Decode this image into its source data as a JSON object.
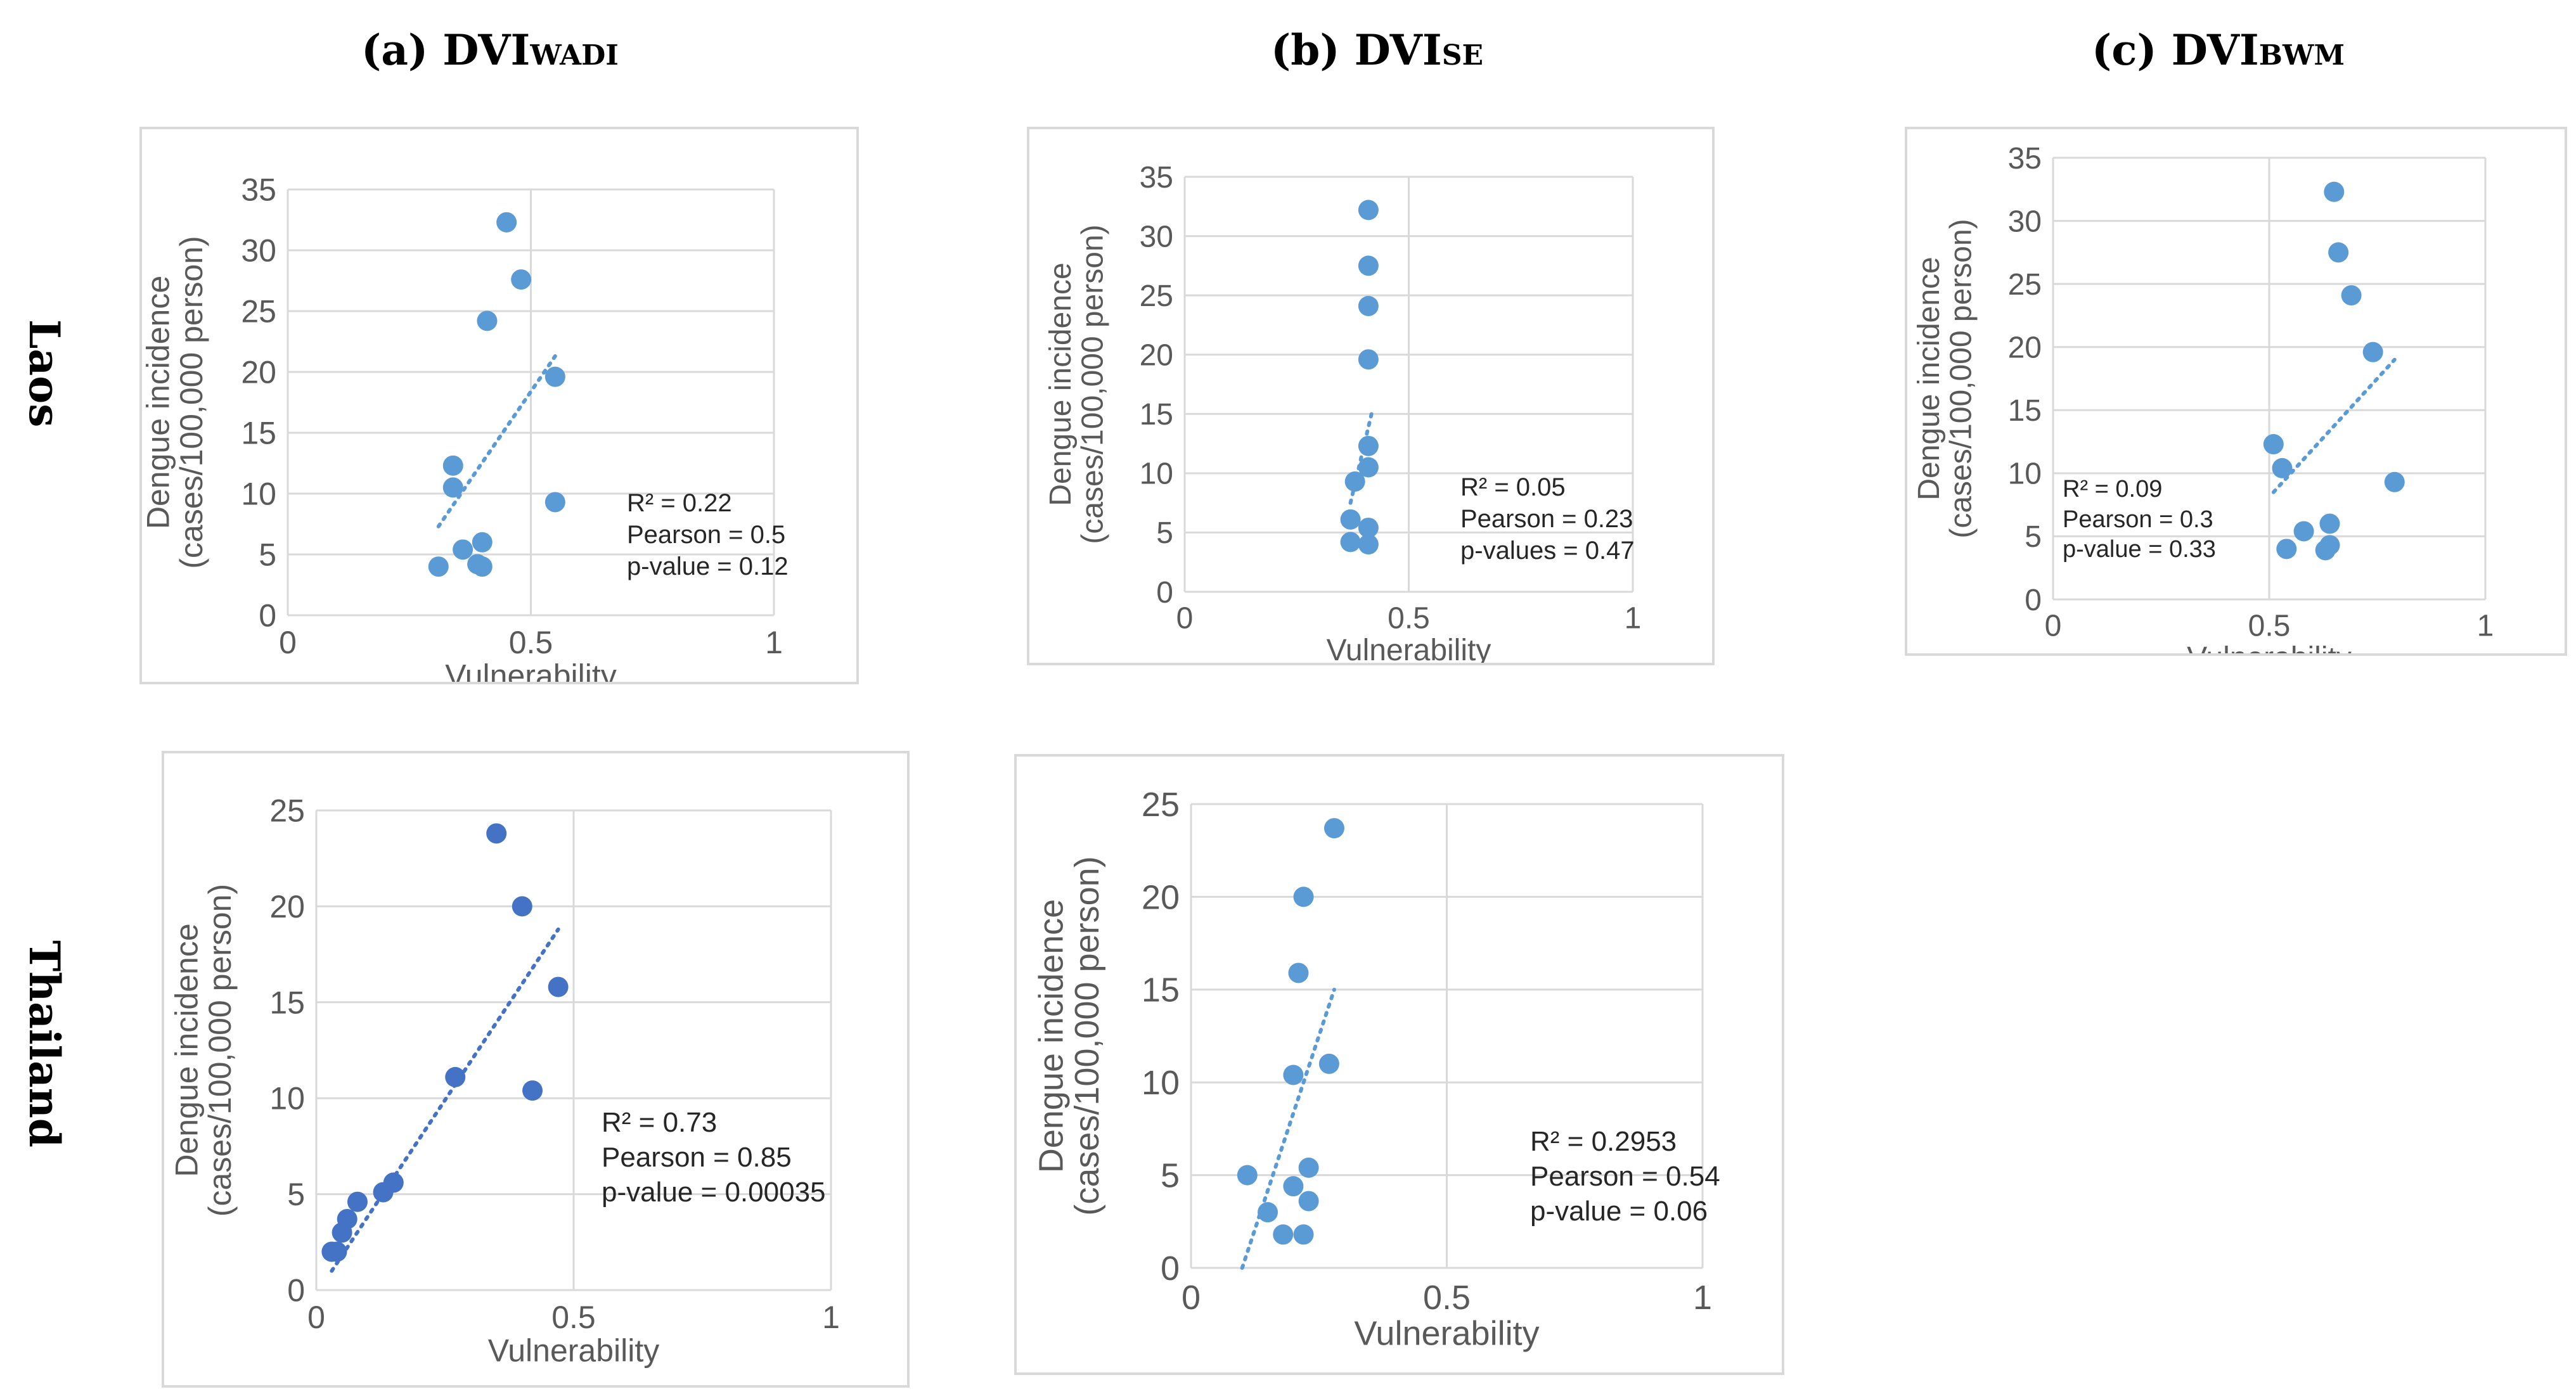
{
  "column_titles": [
    {
      "label": "a",
      "main": "DVI",
      "sub": "WADI"
    },
    {
      "label": "b",
      "main": "DVI",
      "sub": "SE"
    },
    {
      "label": "c",
      "main": "DVI",
      "sub": "BWM"
    }
  ],
  "row_titles": [
    "Laos",
    "Thailand"
  ],
  "chart_data": [
    {
      "id": "laos-wadi",
      "type": "scatter",
      "xlabel": "Vulnerability",
      "ylabel_line1": "Dengue incidence",
      "ylabel_line2": "(cases/100,000 person)",
      "xlim": [
        0,
        1
      ],
      "ylim": [
        0,
        35
      ],
      "xticks": [
        0,
        0.5,
        1
      ],
      "xtick_labels": [
        "0",
        "0.5",
        "1"
      ],
      "yticks": [
        0,
        5,
        10,
        15,
        20,
        25,
        30,
        35
      ],
      "ytick_labels": [
        "0",
        "5",
        "10",
        "15",
        "20",
        "25",
        "30",
        "35"
      ],
      "grid": true,
      "point_color": "#5b9bd5",
      "x": [
        0.45,
        0.48,
        0.41,
        0.55,
        0.34,
        0.34,
        0.55,
        0.4,
        0.36,
        0.31,
        0.39,
        0.4
      ],
      "y": [
        32.3,
        27.6,
        24.2,
        19.6,
        12.3,
        10.5,
        9.3,
        6.0,
        5.4,
        4.0,
        4.2,
        4.0
      ],
      "trendline": {
        "x": [
          0.31,
          0.55
        ],
        "y": [
          7.3,
          21.3
        ]
      },
      "stats": [
        "R² = 0.22",
        "Pearson = 0.5",
        "p-value = 0.12"
      ]
    },
    {
      "id": "laos-se",
      "type": "scatter",
      "xlabel": "Vulnerability",
      "ylabel_line1": "Dengue incidence",
      "ylabel_line2": "(cases/100,000 person)",
      "xlim": [
        0,
        1
      ],
      "ylim": [
        0,
        35
      ],
      "xticks": [
        0,
        0.5,
        1
      ],
      "xtick_labels": [
        "0",
        "0.5",
        "1"
      ],
      "yticks": [
        0,
        5,
        10,
        15,
        20,
        25,
        30,
        35
      ],
      "ytick_labels": [
        "0",
        "5",
        "10",
        "15",
        "20",
        "25",
        "30",
        "35"
      ],
      "grid": true,
      "point_color": "#5b9bd5",
      "x": [
        0.41,
        0.41,
        0.41,
        0.41,
        0.41,
        0.41,
        0.38,
        0.37,
        0.41,
        0.37,
        0.41
      ],
      "y": [
        32.2,
        27.5,
        24.1,
        19.6,
        12.3,
        10.5,
        9.3,
        6.1,
        5.4,
        4.2,
        4.0
      ],
      "trendline": {
        "x": [
          0.37,
          0.42
        ],
        "y": [
          7.5,
          15.5
        ]
      },
      "stats": [
        "R² = 0.05",
        "Pearson = 0.23",
        "p-values = 0.47"
      ]
    },
    {
      "id": "laos-bwm",
      "type": "scatter",
      "xlabel": "Vulnerability",
      "ylabel_line1": "Dengue incidence",
      "ylabel_line2": "(cases/100,000 person)",
      "xlim": [
        0,
        1
      ],
      "ylim": [
        0,
        35
      ],
      "xticks": [
        0,
        0.5,
        1
      ],
      "xtick_labels": [
        "0",
        "0.5",
        "1"
      ],
      "yticks": [
        0,
        5,
        10,
        15,
        20,
        25,
        30,
        35
      ],
      "ytick_labels": [
        "0",
        "5",
        "10",
        "15",
        "20",
        "25",
        "30",
        "35"
      ],
      "grid": true,
      "point_color": "#5b9bd5",
      "x": [
        0.65,
        0.66,
        0.69,
        0.74,
        0.51,
        0.53,
        0.79,
        0.64,
        0.58,
        0.54,
        0.64,
        0.63
      ],
      "y": [
        32.3,
        27.5,
        24.1,
        19.6,
        12.3,
        10.4,
        9.3,
        6.0,
        5.4,
        4.0,
        4.3,
        3.9
      ],
      "trendline": {
        "x": [
          0.51,
          0.79
        ],
        "y": [
          8.5,
          19.0
        ]
      },
      "stats": [
        "R² = 0.09",
        "Pearson = 0.3",
        "p-value = 0.33"
      ]
    },
    {
      "id": "thailand-wadi",
      "type": "scatter",
      "xlabel": "Vulnerability",
      "ylabel_line1": "Dengue incidence",
      "ylabel_line2": "(cases/100,000 person)",
      "xlim": [
        0,
        1
      ],
      "ylim": [
        0,
        25
      ],
      "xticks": [
        0,
        0.5,
        1
      ],
      "xtick_labels": [
        "0",
        "0.5",
        "1"
      ],
      "yticks": [
        0,
        5,
        10,
        15,
        20,
        25
      ],
      "ytick_labels": [
        "0",
        "5",
        "10",
        "15",
        "20",
        "25"
      ],
      "grid": true,
      "point_color": "#4472c4",
      "x": [
        0.35,
        0.4,
        0.47,
        0.27,
        0.42,
        0.15,
        0.13,
        0.08,
        0.06,
        0.05,
        0.03,
        0.04
      ],
      "y": [
        23.8,
        20.0,
        15.8,
        11.1,
        10.4,
        5.6,
        5.1,
        4.6,
        3.7,
        3.0,
        2.0,
        2.0
      ],
      "trendline": {
        "x": [
          0.03,
          0.47
        ],
        "y": [
          1.0,
          18.8
        ]
      },
      "stats": [
        "R² = 0.73",
        "Pearson = 0.85",
        "p-value = 0.00035"
      ]
    },
    {
      "id": "thailand-se",
      "type": "scatter",
      "xlabel": "Vulnerability",
      "ylabel_line1": "Dengue incidence",
      "ylabel_line2": "(cases/100,000 person)",
      "xlim": [
        0,
        1
      ],
      "ylim": [
        0,
        25
      ],
      "xticks": [
        0,
        0.5,
        1
      ],
      "xtick_labels": [
        "0",
        "0.5",
        "1"
      ],
      "yticks": [
        0,
        5,
        10,
        15,
        20,
        25
      ],
      "ytick_labels": [
        "0",
        "5",
        "10",
        "15",
        "20",
        "25"
      ],
      "grid": true,
      "point_color": "#5b9bd5",
      "x": [
        0.28,
        0.22,
        0.21,
        0.2,
        0.27,
        0.23,
        0.11,
        0.2,
        0.23,
        0.15,
        0.18,
        0.22
      ],
      "y": [
        23.7,
        20.0,
        15.9,
        10.4,
        11.0,
        5.4,
        5.0,
        4.4,
        3.6,
        3.0,
        1.8,
        1.8
      ],
      "trendline": {
        "x": [
          0.1,
          0.28
        ],
        "y": [
          0.0,
          15.0
        ]
      },
      "stats": [
        "R² = 0.2953",
        "Pearson = 0.54",
        "p-value = 0.06"
      ]
    }
  ]
}
